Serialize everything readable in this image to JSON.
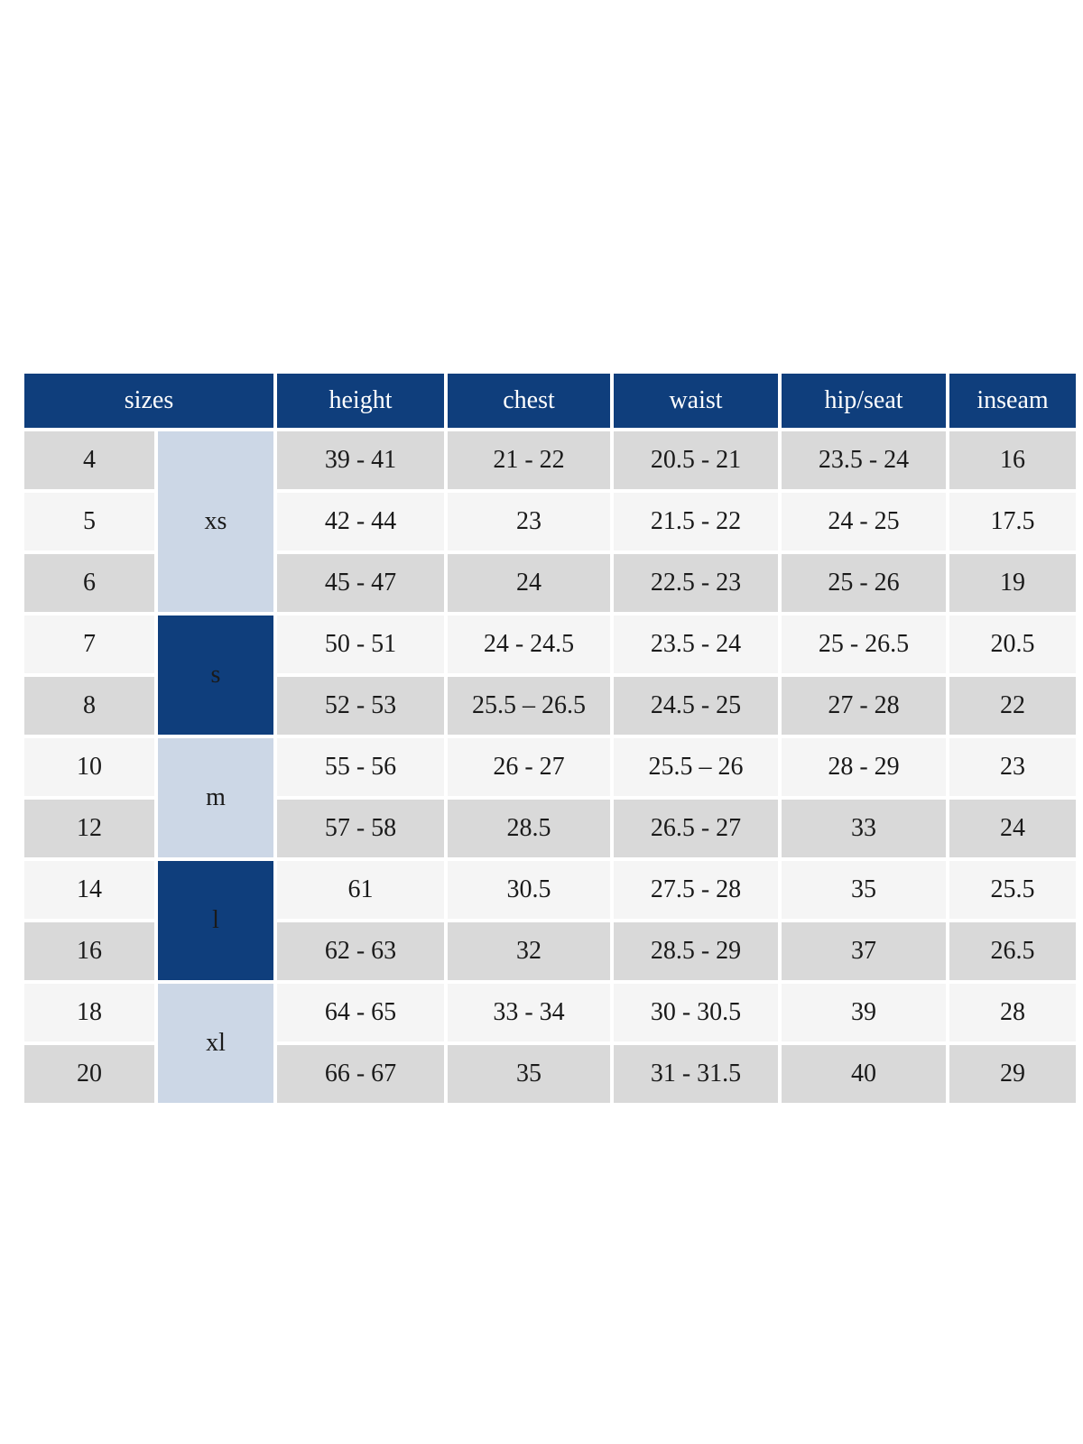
{
  "page": {
    "background": "#ffffff"
  },
  "table": {
    "colors": {
      "header_bg": "#0f3e7c",
      "header_text": "#ffffff",
      "group_dark_bg": "#0f3e7c",
      "group_light_bg": "#ccd7e6",
      "row_odd_bg": "#d9d9d9",
      "row_even_bg": "#f5f5f5",
      "body_text": "#1a1a1a",
      "gap": "#ffffff"
    },
    "header": {
      "sizes_label": "sizes",
      "columns": [
        "height",
        "chest",
        "waist",
        "hip/seat",
        "inseam"
      ]
    },
    "groups": [
      {
        "label": "xs",
        "shade": "light",
        "row_span": 3
      },
      {
        "label": "s",
        "shade": "dark",
        "row_span": 2
      },
      {
        "label": "m",
        "shade": "light",
        "row_span": 2
      },
      {
        "label": "l",
        "shade": "dark",
        "row_span": 2
      },
      {
        "label": "xl",
        "shade": "light",
        "row_span": 2
      }
    ],
    "rows": [
      {
        "size": "4",
        "group": "xs",
        "height": "39 - 41",
        "chest": "21 - 22",
        "waist": "20.5 - 21",
        "hip_seat": "23.5 - 24",
        "inseam": "16"
      },
      {
        "size": "5",
        "group": "xs",
        "height": "42 - 44",
        "chest": "23",
        "waist": "21.5 - 22",
        "hip_seat": "24 - 25",
        "inseam": "17.5"
      },
      {
        "size": "6",
        "group": "xs",
        "height": "45 - 47",
        "chest": "24",
        "waist": "22.5 - 23",
        "hip_seat": "25 - 26",
        "inseam": "19"
      },
      {
        "size": "7",
        "group": "s",
        "height": "50 - 51",
        "chest": "24 - 24.5",
        "waist": "23.5 - 24",
        "hip_seat": "25 - 26.5",
        "inseam": "20.5"
      },
      {
        "size": "8",
        "group": "s",
        "height": "52 - 53",
        "chest": "25.5 – 26.5",
        "waist": "24.5 - 25",
        "hip_seat": "27 - 28",
        "inseam": "22"
      },
      {
        "size": "10",
        "group": "m",
        "height": "55 - 56",
        "chest": "26 - 27",
        "waist": "25.5 – 26",
        "hip_seat": "28 - 29",
        "inseam": "23"
      },
      {
        "size": "12",
        "group": "m",
        "height": "57 - 58",
        "chest": "28.5",
        "waist": "26.5 - 27",
        "hip_seat": "33",
        "inseam": "24"
      },
      {
        "size": "14",
        "group": "l",
        "height": "61",
        "chest": "30.5",
        "waist": "27.5 - 28",
        "hip_seat": "35",
        "inseam": "25.5"
      },
      {
        "size": "16",
        "group": "l",
        "height": "62 - 63",
        "chest": "32",
        "waist": "28.5 - 29",
        "hip_seat": "37",
        "inseam": "26.5"
      },
      {
        "size": "18",
        "group": "xl",
        "height": "64 - 65",
        "chest": "33 - 34",
        "waist": "30 - 30.5",
        "hip_seat": "39",
        "inseam": "28"
      },
      {
        "size": "20",
        "group": "xl",
        "height": "66 - 67",
        "chest": "35",
        "waist": "31 - 31.5",
        "hip_seat": "40",
        "inseam": "29"
      }
    ]
  }
}
